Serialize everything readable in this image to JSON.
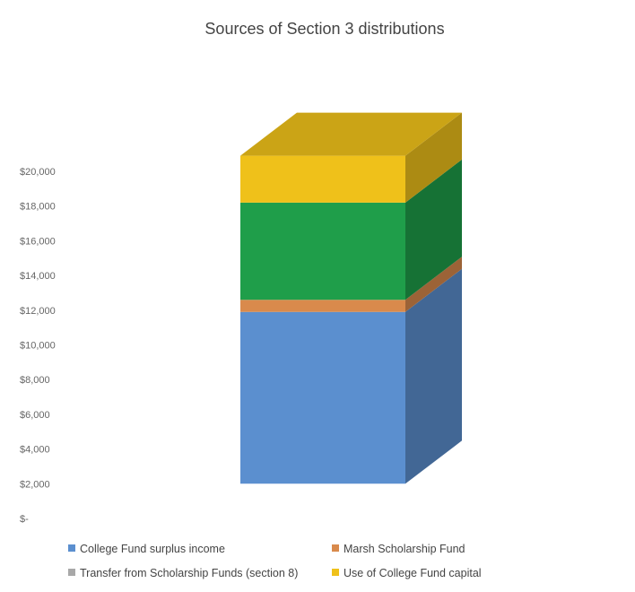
{
  "chart_data": {
    "type": "bar",
    "title": "Sources of Section 3 distributions",
    "xlabel": "",
    "ylabel": "",
    "ylim": [
      0,
      20000
    ],
    "y_ticks": [
      "$-",
      "$2,000",
      "$4,000",
      "$6,000",
      "$8,000",
      "$10,000",
      "$12,000",
      "$14,000",
      "$16,000",
      "$18,000",
      "$20,000"
    ],
    "grid": false,
    "legend_position": "bottom",
    "categories": [
      ""
    ],
    "series": [
      {
        "name": "College Fund  surplus income",
        "values": [
          9900
        ],
        "color": "#5b8fcf"
      },
      {
        "name": "Marsh Scholarship Fund",
        "values": [
          700
        ],
        "color": "#d98a4c"
      },
      {
        "name": "Transfer from Scholarship Funds (section 8)",
        "values": [
          5600
        ],
        "color": "#1f9e4a"
      },
      {
        "name": "Use of College Fund capital",
        "values": [
          2700
        ],
        "color": "#efc11a"
      }
    ],
    "legend_swatches": [
      {
        "series": 0,
        "color": "#5b8fcf"
      },
      {
        "series": 1,
        "color": "#d98a4c"
      },
      {
        "series": 2,
        "color": "#a8a8a8"
      },
      {
        "series": 3,
        "color": "#efc11a"
      }
    ]
  }
}
